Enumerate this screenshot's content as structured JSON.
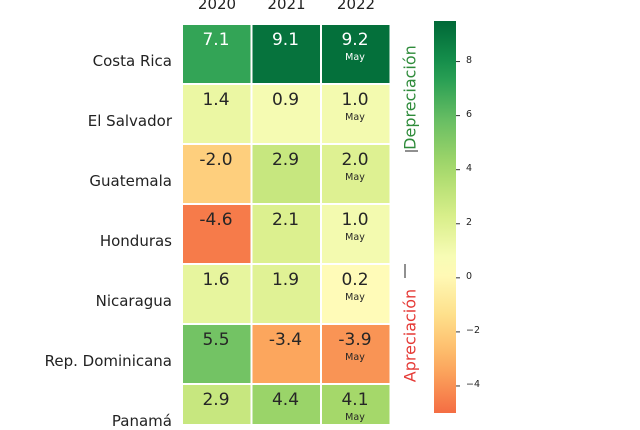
{
  "chart_data": {
    "type": "heatmap",
    "columns": [
      "2020",
      "2021",
      "2022"
    ],
    "rows": [
      "Costa Rica",
      "El Salvador",
      "Guatemala",
      "Honduras",
      "Nicaragua",
      "Rep. Dominicana",
      "Panamá"
    ],
    "values": [
      [
        7.1,
        9.1,
        9.2
      ],
      [
        1.4,
        0.9,
        1.0
      ],
      [
        -2.0,
        2.9,
        2.0
      ],
      [
        -4.6,
        2.1,
        1.0
      ],
      [
        1.6,
        1.9,
        0.2
      ],
      [
        5.5,
        -3.4,
        -3.9
      ],
      [
        2.9,
        4.4,
        4.1
      ]
    ],
    "labels": [
      [
        "7.1",
        "9.1",
        "9.2"
      ],
      [
        "1.4",
        "0.9",
        "1.0"
      ],
      [
        "-2.0",
        "2.9",
        "2.0"
      ],
      [
        "-4.6",
        "2.1",
        "1.0"
      ],
      [
        "1.6",
        "1.9",
        "0.2"
      ],
      [
        "5.5",
        "-3.4",
        "-3.9"
      ],
      [
        "2.9",
        "4.4",
        "4.1"
      ]
    ],
    "cell_note": "May",
    "cell_note_column": "2022",
    "side_labels": {
      "top": "Depreciación",
      "bottom": "Apreciación"
    },
    "side_label_colors": {
      "top": "#2e8b3a",
      "bottom": "#e53935"
    },
    "colorbar": {
      "ticks": [
        8,
        6,
        4,
        2,
        0,
        -2,
        -4
      ],
      "tick_labels": [
        "8",
        "6",
        "4",
        "2",
        "0",
        "−2",
        "−4"
      ],
      "range": [
        -5,
        9.5
      ]
    },
    "colormap": "RdYlGn",
    "colors": [
      "#f46d43",
      "#fdae61",
      "#fee08b",
      "#ffffbf",
      "#d9ef8b",
      "#a6d96a",
      "#66bd63",
      "#1a9850",
      "#006837"
    ]
  }
}
